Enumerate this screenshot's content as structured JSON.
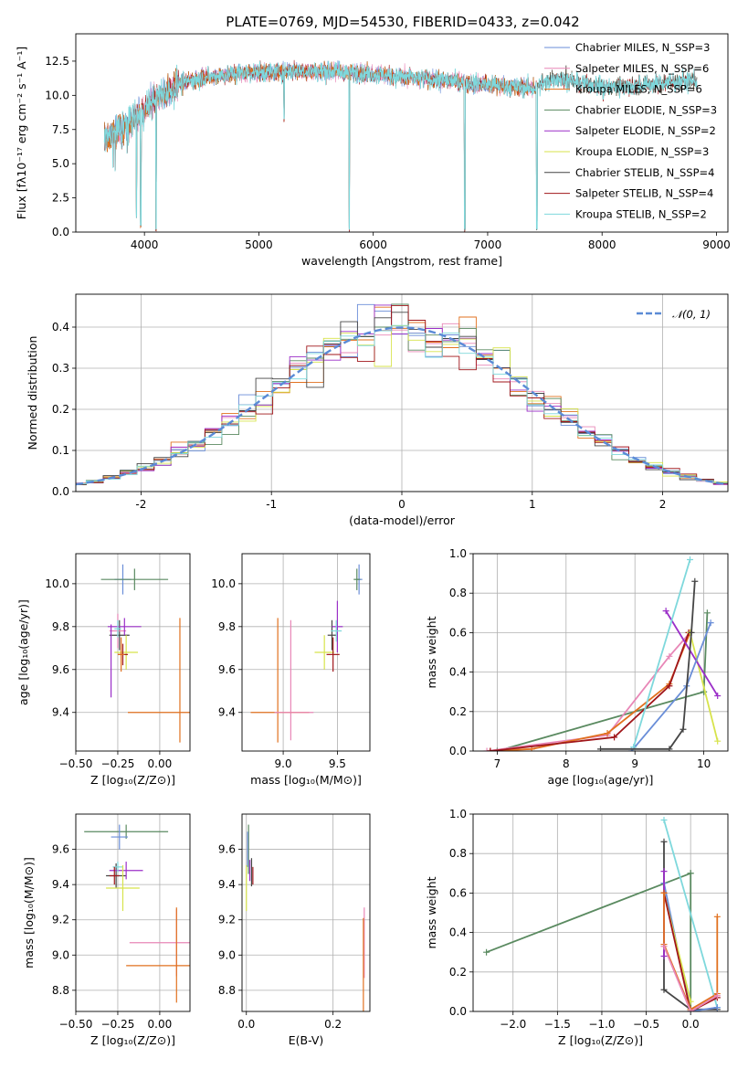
{
  "chart_data": [
    {
      "id": "spectrum",
      "type": "line",
      "title": "PLATE=0769, MJD=54530, FIBERID=0433, z=0.042",
      "xlabel": "wavelength [Angstrom, rest frame]",
      "ylabel": "Flux [fλ10⁻¹⁷ erg cm⁻² s⁻¹ A⁻¹]",
      "xlim": [
        3400,
        9100
      ],
      "ylim": [
        0,
        14.5
      ],
      "xticks": [
        4000,
        5000,
        6000,
        7000,
        8000,
        9000
      ],
      "yticks": [
        0.0,
        2.5,
        5.0,
        7.5,
        10.0,
        12.5
      ],
      "continuum": {
        "x": [
          3650,
          3800,
          3950,
          4100,
          4300,
          4500,
          4800,
          5100,
          5400,
          5800,
          6200,
          6600,
          7000,
          7400,
          7600,
          7800,
          8100,
          8400,
          8800
        ],
        "y": [
          6.8,
          7.6,
          8.6,
          9.8,
          10.8,
          11.3,
          11.6,
          11.7,
          11.8,
          11.7,
          11.4,
          11.1,
          10.8,
          10.5,
          11.3,
          10.9,
          10.6,
          10.8,
          11.1
        ]
      },
      "series": [
        {
          "name": "Chabrier MILES, N_SSP=3",
          "color": "#6a8ed8"
        },
        {
          "name": "Salpeter MILES, N_SSP=6",
          "color": "#e887b7"
        },
        {
          "name": "Kroupa MILES, N_SSP=6",
          "color": "#e1711f"
        },
        {
          "name": "Chabrier ELODIE, N_SSP=3",
          "color": "#5a8a60"
        },
        {
          "name": "Salpeter ELODIE, N_SSP=2",
          "color": "#9b2fc8"
        },
        {
          "name": "Kroupa ELODIE, N_SSP=3",
          "color": "#d7e34b"
        },
        {
          "name": "Chabrier STELIB, N_SSP=4",
          "color": "#454545"
        },
        {
          "name": "Salpeter STELIB, N_SSP=4",
          "color": "#a0161a"
        },
        {
          "name": "Kroupa STELIB, N_SSP=2",
          "color": "#7ed8dc"
        }
      ],
      "dips": [
        [
          3930,
          1.0
        ],
        [
          3968,
          0.3
        ],
        [
          4102,
          0.0
        ],
        [
          5790,
          0.0
        ],
        [
          6800,
          0.0
        ],
        [
          7430,
          0.0
        ],
        [
          5220,
          8.0
        ],
        [
          8010,
          9.5
        ]
      ]
    },
    {
      "id": "residuals",
      "type": "histogram",
      "xlabel": "(data-model)/error",
      "ylabel": "Normed distribution",
      "xlim": [
        -2.5,
        2.5
      ],
      "ylim": [
        0,
        0.48
      ],
      "xticks": [
        -2,
        -1,
        0,
        1,
        2
      ],
      "yticks": [
        0.0,
        0.1,
        0.2,
        0.3,
        0.4
      ],
      "reference_label": "𝒩(0, 1)",
      "reference_color": "#5b8bd6"
    },
    {
      "id": "age-vs-Z",
      "type": "errorbar",
      "xlabel": "Z [log₁₀(Z/Z⊙)]",
      "ylabel": "age  [log₁₀(age/yr)]",
      "xlim": [
        -0.5,
        0.18
      ],
      "ylim": [
        9.22,
        10.14
      ],
      "xticks": [
        -0.5,
        -0.25,
        0.0
      ],
      "xticklabels": [
        "−0.50",
        "−0.25",
        "0.00"
      ],
      "yticks": [
        9.4,
        9.6,
        9.8,
        10.0
      ],
      "points": [
        {
          "color": "#6a8ed8",
          "x": -0.22,
          "y": 10.02,
          "xe": 0.05,
          "ye": 0.07
        },
        {
          "color": "#5a8a60",
          "x": -0.15,
          "y": 10.02,
          "xe": 0.2,
          "ye": 0.05
        },
        {
          "color": "#454545",
          "x": -0.24,
          "y": 9.76,
          "xe": 0.06,
          "ye": 0.07
        },
        {
          "color": "#e887b7",
          "x": -0.25,
          "y": 9.78,
          "xe": 0.05,
          "ye": 0.08
        },
        {
          "color": "#9b2fc8",
          "x": -0.21,
          "y": 9.8,
          "xe": 0.1,
          "ye": 0.04
        },
        {
          "color": "#7ed8dc",
          "x": -0.25,
          "y": 9.79,
          "xe": 0.02,
          "ye": 0.04
        },
        {
          "color": "#d7e34b",
          "x": -0.2,
          "y": 9.68,
          "xe": 0.07,
          "ye": 0.08
        },
        {
          "color": "#a0161a",
          "x": -0.22,
          "y": 9.67,
          "xe": 0.03,
          "ye": 0.05
        },
        {
          "color": "#e1711f",
          "x": -0.23,
          "y": 9.67,
          "xe": 0.02,
          "ye": 0.08
        },
        {
          "color": "#e1711f",
          "x": 0.0,
          "y": 9.4,
          "xe": 0.19,
          "ye": 0.0
        },
        {
          "color": "#e1711f",
          "x": 0.12,
          "y": 9.55,
          "xe": 0.0,
          "ye": 0.29
        },
        {
          "color": "#9b2fc8",
          "x": -0.29,
          "y": 9.64,
          "xe": 0.0,
          "ye": 0.17
        }
      ]
    },
    {
      "id": "age-vs-mass",
      "type": "errorbar",
      "xlabel": "mass [log₁₀(M/M⊙)]",
      "ylabel": "",
      "xlim": [
        8.62,
        9.8
      ],
      "ylim": [
        9.22,
        10.14
      ],
      "xticks": [
        9.0,
        9.5
      ],
      "xticklabels": [
        "9.0",
        "9.5"
      ],
      "yticks": [
        9.4,
        9.6,
        9.8,
        10.0
      ],
      "points": [
        {
          "color": "#6a8ed8",
          "x": 9.7,
          "y": 10.02,
          "xe": 0.03,
          "ye": 0.07
        },
        {
          "color": "#5a8a60",
          "x": 9.68,
          "y": 10.02,
          "xe": 0.03,
          "ye": 0.05
        },
        {
          "color": "#454545",
          "x": 9.45,
          "y": 9.76,
          "xe": 0.04,
          "ye": 0.07
        },
        {
          "color": "#9b2fc8",
          "x": 9.5,
          "y": 9.8,
          "xe": 0.05,
          "ye": 0.12
        },
        {
          "color": "#7ed8dc",
          "x": 9.49,
          "y": 9.78,
          "xe": 0.05,
          "ye": 0.05
        },
        {
          "color": "#d7e34b",
          "x": 9.38,
          "y": 9.68,
          "xe": 0.09,
          "ye": 0.08
        },
        {
          "color": "#a0161a",
          "x": 9.46,
          "y": 9.67,
          "xe": 0.06,
          "ye": 0.08
        },
        {
          "color": "#e887b7",
          "x": 9.07,
          "y": 9.55,
          "xe": 0.0,
          "ye": 0.28
        },
        {
          "color": "#e1711f",
          "x": 8.95,
          "y": 9.55,
          "xe": 0.0,
          "ye": 0.29
        },
        {
          "color": "#e1711f",
          "x": 8.97,
          "y": 9.4,
          "xe": 0.27,
          "ye": 0.0
        },
        {
          "color": "#e887b7",
          "x": 9.1,
          "y": 9.4,
          "xe": 0.18,
          "ye": 0.0
        }
      ]
    },
    {
      "id": "weight-vs-age",
      "type": "line",
      "xlabel": "age  [log₁₀(age/yr)]",
      "ylabel": "mass weight",
      "xlim": [
        6.65,
        10.35
      ],
      "ylim": [
        0,
        1
      ],
      "xticks": [
        7,
        8,
        9,
        10
      ],
      "xticklabels": [
        "7",
        "8",
        "9",
        "10"
      ],
      "yticks": [
        0.0,
        0.2,
        0.4,
        0.6,
        0.8,
        1.0
      ],
      "series": [
        {
          "color": "#5a8a60",
          "x": [
            7.0,
            10.0
          ],
          "y": [
            0.0,
            0.3
          ]
        },
        {
          "color": "#5a8a60",
          "x": [
            10.0,
            10.05
          ],
          "y": [
            0.3,
            0.7
          ]
        },
        {
          "color": "#e887b7",
          "x": [
            6.85,
            8.6,
            9.5,
            9.8
          ],
          "y": [
            0.0,
            0.08,
            0.48,
            0.6
          ]
        },
        {
          "color": "#e1711f",
          "x": [
            6.9,
            7.5,
            8.6,
            9.5,
            9.8
          ],
          "y": [
            0.0,
            0.01,
            0.09,
            0.34,
            0.6
          ]
        },
        {
          "color": "#a0161a",
          "x": [
            6.9,
            8.7,
            9.5,
            9.78
          ],
          "y": [
            0.0,
            0.07,
            0.33,
            0.6
          ]
        },
        {
          "color": "#d7e34b",
          "x": [
            9.8,
            10.2
          ],
          "y": [
            0.6,
            0.05
          ]
        },
        {
          "color": "#9b2fc8",
          "x": [
            9.45,
            10.2
          ],
          "y": [
            0.71,
            0.28
          ]
        },
        {
          "color": "#6a8ed8",
          "x": [
            8.95,
            9.75,
            10.1
          ],
          "y": [
            0.0,
            0.33,
            0.65
          ]
        },
        {
          "color": "#7ed8dc",
          "x": [
            8.98,
            9.8
          ],
          "y": [
            0.02,
            0.97
          ]
        },
        {
          "color": "#454545",
          "x": [
            8.5,
            9.5,
            9.7,
            9.82,
            9.87
          ],
          "y": [
            0.01,
            0.01,
            0.11,
            0.6,
            0.86
          ]
        }
      ]
    },
    {
      "id": "mass-vs-Z",
      "type": "errorbar",
      "xlabel": "Z [log₁₀(Z/Z⊙)]",
      "ylabel": "mass [log₁₀(M/M⊙)]",
      "xlim": [
        -0.5,
        0.18
      ],
      "ylim": [
        8.68,
        9.8
      ],
      "xticks": [
        -0.5,
        -0.25,
        0.0
      ],
      "xticklabels": [
        "−0.50",
        "−0.25",
        "0.00"
      ],
      "yticks": [
        8.8,
        9.0,
        9.2,
        9.4,
        9.6
      ],
      "points": [
        {
          "color": "#5a8a60",
          "x": -0.2,
          "y": 9.7,
          "xe": 0.25,
          "ye": 0.04
        },
        {
          "color": "#6a8ed8",
          "x": -0.24,
          "y": 9.67,
          "xe": 0.05,
          "ye": 0.07
        },
        {
          "color": "#454545",
          "x": -0.26,
          "y": 9.45,
          "xe": 0.06,
          "ye": 0.07
        },
        {
          "color": "#9b2fc8",
          "x": -0.2,
          "y": 9.48,
          "xe": 0.1,
          "ye": 0.05
        },
        {
          "color": "#7ed8dc",
          "x": -0.25,
          "y": 9.5,
          "xe": 0.03,
          "ye": 0.03
        },
        {
          "color": "#d7e34b",
          "x": -0.22,
          "y": 9.38,
          "xe": 0.1,
          "ye": 0.13
        },
        {
          "color": "#a0161a",
          "x": -0.27,
          "y": 9.45,
          "xe": 0.03,
          "ye": 0.05
        },
        {
          "color": "#e887b7",
          "x": 0.0,
          "y": 9.07,
          "xe": 0.18,
          "ye": 0.0
        },
        {
          "color": "#e887b7",
          "x": 0.1,
          "y": 9.07,
          "xe": 0.0,
          "ye": 0.19
        },
        {
          "color": "#e1711f",
          "x": 0.0,
          "y": 8.94,
          "xe": 0.2,
          "ye": 0.0
        },
        {
          "color": "#e1711f",
          "x": 0.1,
          "y": 9.0,
          "xe": 0.0,
          "ye": 0.27
        }
      ]
    },
    {
      "id": "mass-vs-EBV",
      "type": "errorbar",
      "xlabel": "E(B-V)",
      "ylabel": "",
      "xlim": [
        -0.01,
        0.285
      ],
      "ylim": [
        8.68,
        9.8
      ],
      "xticks": [
        0.0,
        0.2
      ],
      "xticklabels": [
        "0.0",
        "0.2"
      ],
      "yticks": [
        8.8,
        9.0,
        9.2,
        9.4,
        9.6
      ],
      "points": [
        {
          "color": "#5a8a60",
          "x": 0.005,
          "y": 9.6,
          "xe": 0.0,
          "ye": 0.14
        },
        {
          "color": "#6a8ed8",
          "x": 0.003,
          "y": 9.6,
          "xe": 0.0,
          "ye": 0.1
        },
        {
          "color": "#d7e34b",
          "x": 0.0,
          "y": 9.38,
          "xe": 0.0,
          "ye": 0.13
        },
        {
          "color": "#9b2fc8",
          "x": 0.008,
          "y": 9.48,
          "xe": 0.0,
          "ye": 0.06
        },
        {
          "color": "#a0161a",
          "x": 0.015,
          "y": 9.45,
          "xe": 0.0,
          "ye": 0.05
        },
        {
          "color": "#454545",
          "x": 0.012,
          "y": 9.47,
          "xe": 0.0,
          "ye": 0.08
        },
        {
          "color": "#e887b7",
          "x": 0.272,
          "y": 9.07,
          "xe": 0.0,
          "ye": 0.2
        },
        {
          "color": "#e1711f",
          "x": 0.27,
          "y": 8.94,
          "xe": 0.0,
          "ye": 0.27
        }
      ]
    },
    {
      "id": "weight-vs-Z",
      "type": "line",
      "xlabel": "Z [log₁₀(Z/Z⊙)]",
      "ylabel": "mass weight",
      "xlim": [
        -2.45,
        0.42
      ],
      "ylim": [
        0,
        1
      ],
      "xticks": [
        -2.0,
        -1.5,
        -1.0,
        -0.5,
        0.0
      ],
      "xticklabels": [
        "−2.0",
        "−1.5",
        "−1.0",
        "−0.5",
        "0.0"
      ],
      "yticks": [
        0.0,
        0.2,
        0.4,
        0.6,
        0.8,
        1.0
      ],
      "series": [
        {
          "color": "#5a8a60",
          "x": [
            -2.3,
            0.0
          ],
          "y": [
            0.3,
            0.7
          ]
        },
        {
          "color": "#5a8a60",
          "x": [
            0.0,
            0.0
          ],
          "y": [
            0.7,
            0.0
          ]
        },
        {
          "color": "#7ed8dc",
          "x": [
            -0.3,
            0.3
          ],
          "y": [
            0.97,
            0.02
          ]
        },
        {
          "color": "#454545",
          "x": [
            -0.3,
            -0.3,
            -0.3,
            0.0,
            0.3
          ],
          "y": [
            0.86,
            0.6,
            0.11,
            0.01,
            0.01
          ]
        },
        {
          "color": "#6a8ed8",
          "x": [
            -0.3,
            0.0,
            0.3
          ],
          "y": [
            0.65,
            0.0,
            0.02
          ]
        },
        {
          "color": "#d7e34b",
          "x": [
            -0.3,
            0.0
          ],
          "y": [
            0.6,
            0.05
          ]
        },
        {
          "color": "#9b2fc8",
          "x": [
            -0.3,
            -0.3
          ],
          "y": [
            0.71,
            0.28
          ]
        },
        {
          "color": "#a0161a",
          "x": [
            -0.3,
            0.0,
            0.3
          ],
          "y": [
            0.6,
            0.0,
            0.07
          ]
        },
        {
          "color": "#e1711f",
          "x": [
            -0.3,
            -0.3,
            0.0,
            0.3,
            0.3
          ],
          "y": [
            0.6,
            0.34,
            0.01,
            0.09,
            0.48
          ]
        },
        {
          "color": "#e887b7",
          "x": [
            -0.3,
            0.0,
            0.3
          ],
          "y": [
            0.33,
            0.0,
            0.08
          ]
        }
      ]
    }
  ]
}
